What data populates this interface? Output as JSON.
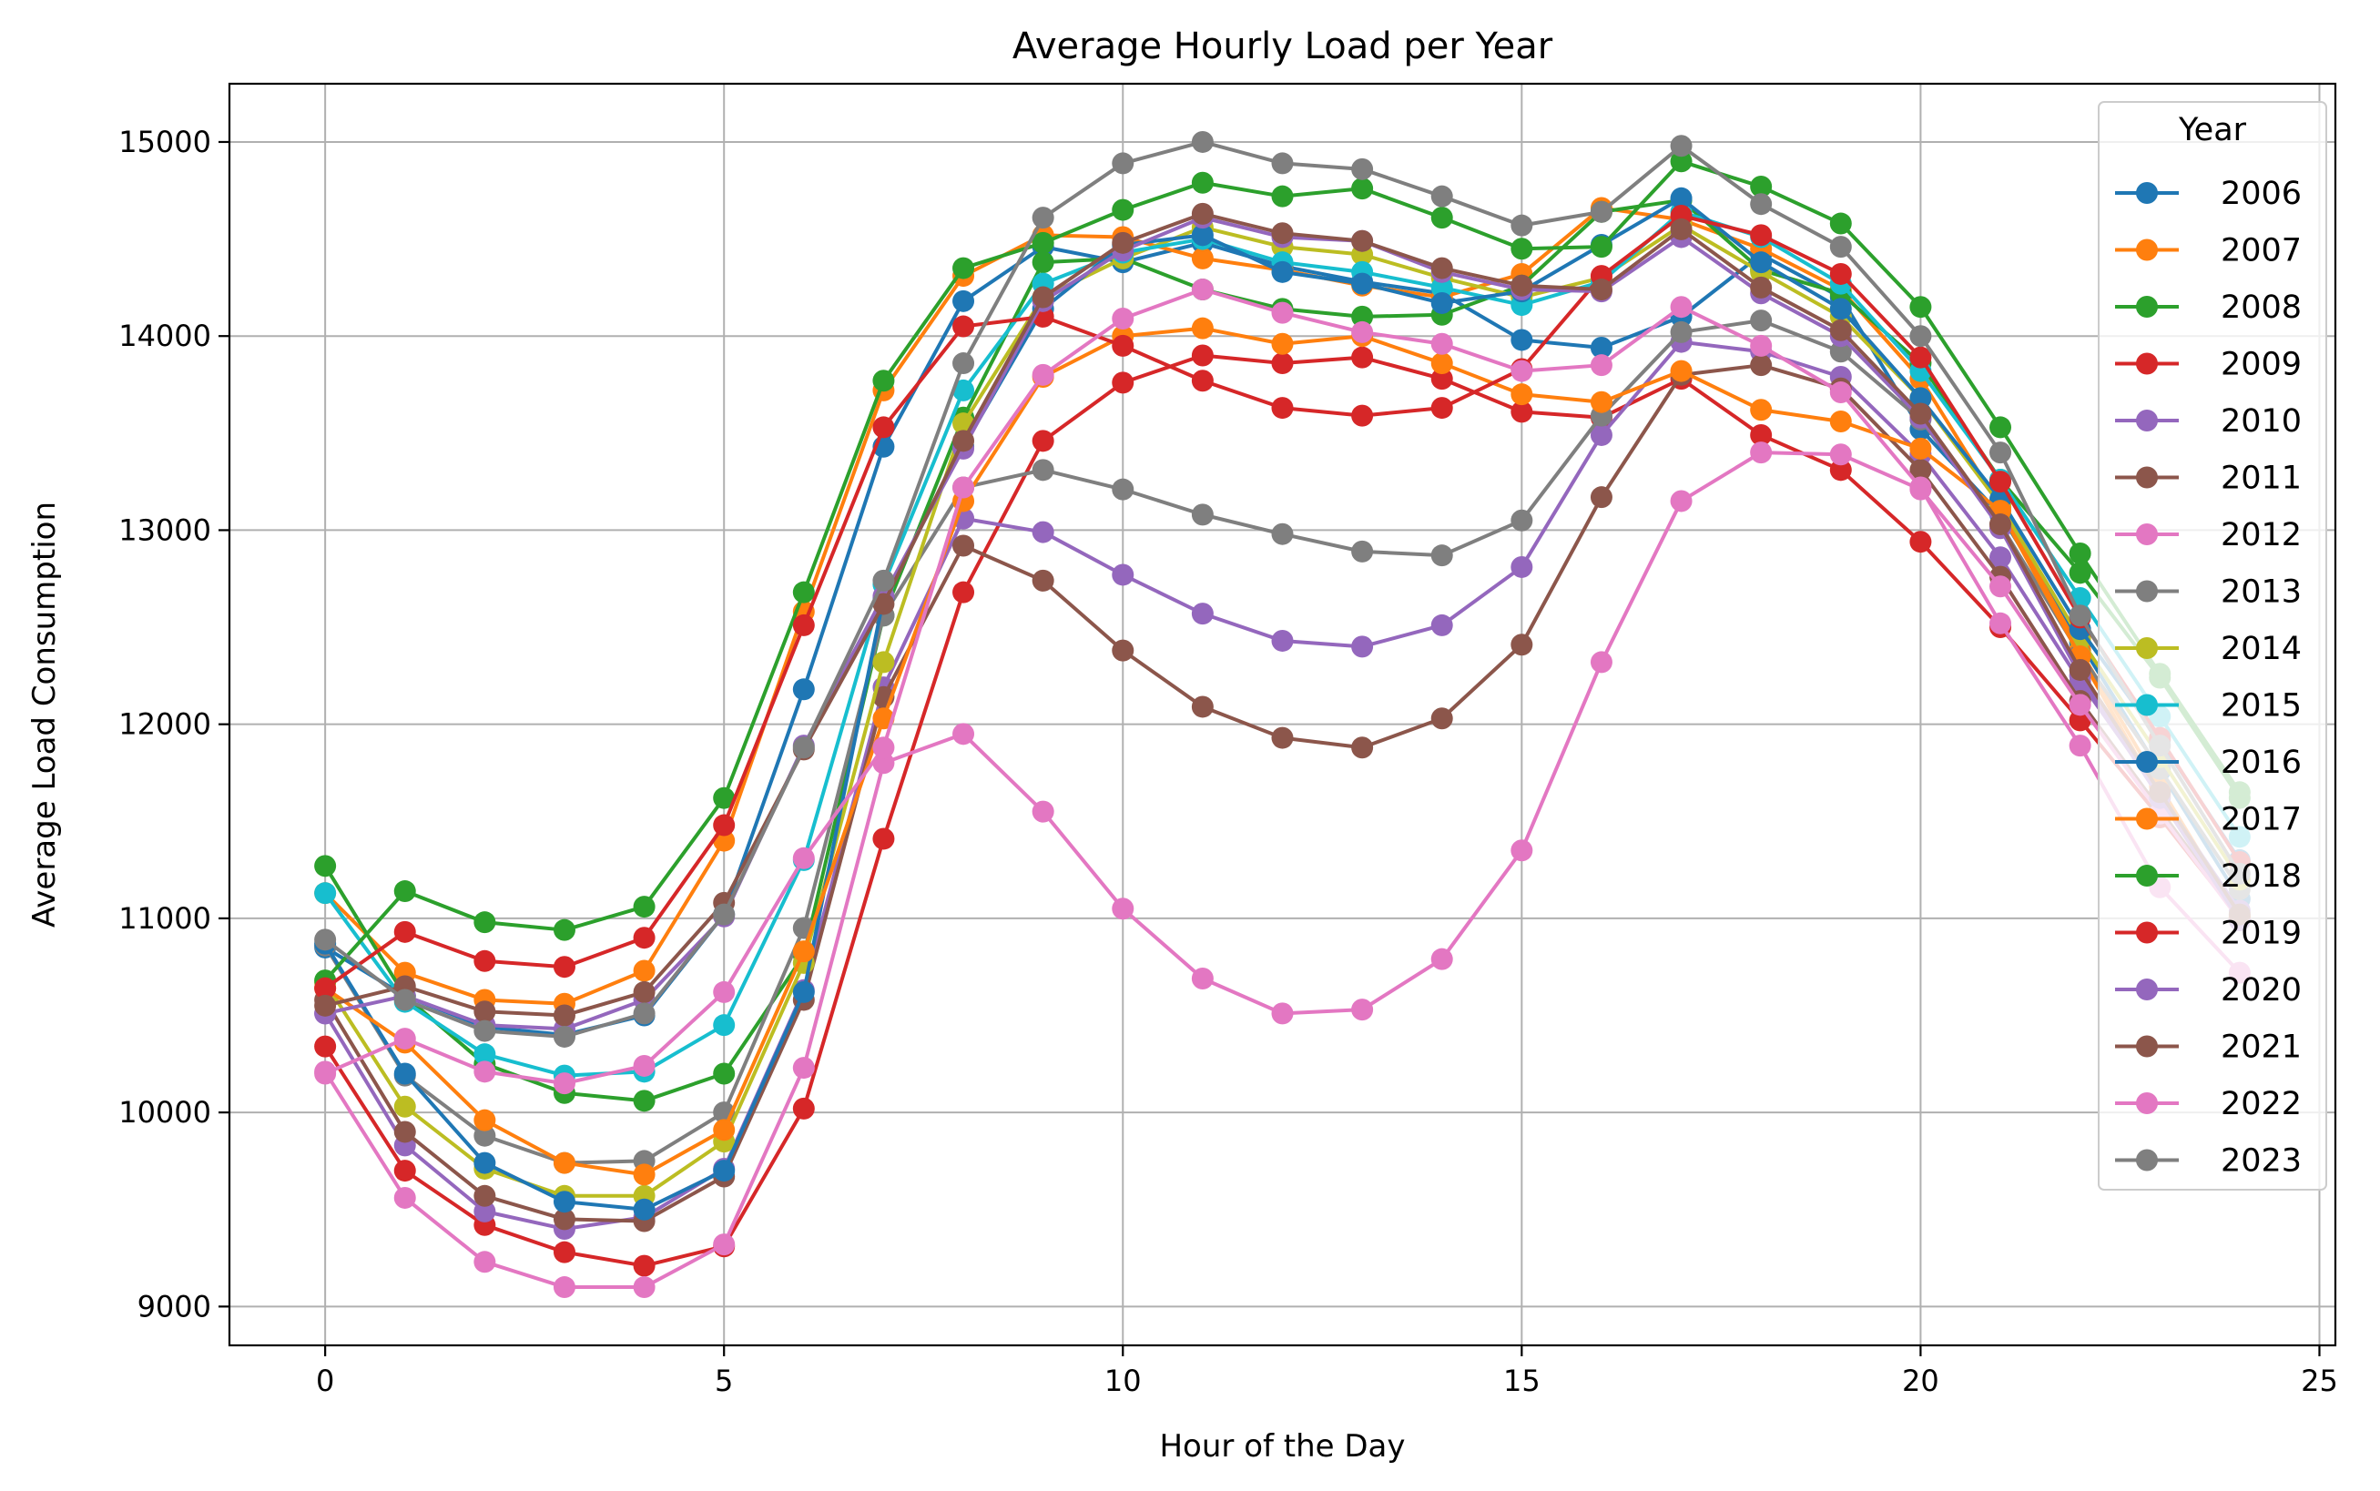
{
  "chart_data": {
    "type": "line",
    "title": "Average Hourly Load per Year",
    "xlabel": "Hour of the Day",
    "ylabel": "Average Load Consumption",
    "xlim": [
      -1.2,
      25.2
    ],
    "ylim": [
      8800,
      15300
    ],
    "xticks": [
      0,
      5,
      10,
      15,
      20,
      25
    ],
    "yticks": [
      9000,
      10000,
      11000,
      12000,
      13000,
      14000,
      15000
    ],
    "grid": true,
    "legend": {
      "title": "Year",
      "position": "top-right"
    },
    "x": [
      0,
      1,
      2,
      3,
      4,
      5,
      6,
      7,
      8,
      9,
      10,
      11,
      12,
      13,
      14,
      15,
      16,
      17,
      18,
      19,
      20,
      21,
      22,
      23,
      24
    ],
    "series": [
      {
        "name": "2006",
        "color": "#1f77b4",
        "values": [
          10850,
          10600,
          10440,
          10400,
          10500,
          11020,
          12180,
          13430,
          14180,
          14460,
          14380,
          14480,
          14360,
          14280,
          14220,
          13980,
          13940,
          14100,
          14420,
          14200,
          13520,
          13080,
          12420,
          11760,
          11100
        ]
      },
      {
        "name": "2007",
        "color": "#ff7f0e",
        "values": [
          11130,
          10720,
          10580,
          10560,
          10730,
          11400,
          12580,
          13720,
          14310,
          14520,
          14510,
          14400,
          14340,
          14260,
          14200,
          14320,
          14660,
          14600,
          14450,
          14240,
          13780,
          13120,
          12380,
          11680,
          11000
        ]
      },
      {
        "name": "2008",
        "color": "#2ca02c",
        "values": [
          11270,
          10600,
          10250,
          10100,
          10060,
          10200,
          10810,
          12560,
          13580,
          14380,
          14400,
          14240,
          14140,
          14100,
          14110,
          14260,
          14640,
          14700,
          14340,
          14220,
          13860,
          13260,
          12780,
          12240,
          11620
        ]
      },
      {
        "name": "2009",
        "color": "#d62728",
        "values": [
          10340,
          9700,
          9420,
          9280,
          9210,
          9310,
          10020,
          11410,
          12680,
          13460,
          13760,
          13900,
          13860,
          13890,
          13780,
          13610,
          13580,
          13780,
          13490,
          13310,
          12940,
          12500,
          12020,
          11520,
          11000
        ]
      },
      {
        "name": "2010",
        "color": "#9467bd",
        "values": [
          10510,
          9830,
          9490,
          9400,
          9460,
          9710,
          10630,
          12190,
          13060,
          12990,
          12770,
          12570,
          12430,
          12400,
          12510,
          12810,
          13490,
          13970,
          13920,
          13790,
          13390,
          12860,
          12220,
          11640,
          11040
        ]
      },
      {
        "name": "2011",
        "color": "#8c564b",
        "values": [
          10580,
          9900,
          9570,
          9450,
          9440,
          9670,
          10580,
          12140,
          12920,
          12740,
          12380,
          12090,
          11930,
          11880,
          12030,
          12410,
          13170,
          13800,
          13850,
          13730,
          13310,
          12760,
          12120,
          11560,
          11000
        ]
      },
      {
        "name": "2012",
        "color": "#e377c2",
        "values": [
          10210,
          9560,
          9230,
          9100,
          9100,
          9320,
          10230,
          11800,
          11950,
          11550,
          11050,
          10690,
          10510,
          10530,
          10790,
          11350,
          12320,
          13150,
          13400,
          13390,
          13210,
          12710,
          12100,
          11540,
          10990
        ]
      },
      {
        "name": "2013",
        "color": "#7f7f7f",
        "values": [
          10860,
          10190,
          9880,
          9740,
          9750,
          10000,
          10950,
          12560,
          13220,
          13310,
          13210,
          13080,
          12980,
          12890,
          12870,
          13050,
          13590,
          14020,
          14080,
          13920,
          13570,
          13030,
          12360,
          11770,
          11150
        ]
      },
      {
        "name": "2014",
        "color": "#bcbd22",
        "values": [
          10670,
          10030,
          9710,
          9570,
          9570,
          9850,
          10770,
          12320,
          13550,
          14200,
          14400,
          14560,
          14460,
          14420,
          14300,
          14200,
          14300,
          14570,
          14330,
          14100,
          13680,
          13130,
          12440,
          11830,
          11200
        ]
      },
      {
        "name": "2015",
        "color": "#17becf",
        "values": [
          11130,
          10570,
          10300,
          10190,
          10210,
          10450,
          11300,
          12720,
          13720,
          14270,
          14430,
          14500,
          14380,
          14330,
          14250,
          14160,
          14280,
          14640,
          14510,
          14270,
          13820,
          13260,
          12650,
          12040,
          11420
        ]
      },
      {
        "name": "2016",
        "color": "#1f77b4",
        "values": [
          10870,
          10200,
          9740,
          9540,
          9500,
          9700,
          10620,
          12650,
          13430,
          14140,
          14470,
          14520,
          14330,
          14270,
          14170,
          14230,
          14470,
          14710,
          14380,
          14140,
          13680,
          13160,
          12490,
          11920,
          11300
        ]
      },
      {
        "name": "2017",
        "color": "#ff7f0e",
        "values": [
          10640,
          10360,
          9960,
          9740,
          9680,
          9910,
          10830,
          12030,
          13150,
          13790,
          14000,
          14040,
          13960,
          14000,
          13860,
          13700,
          13660,
          13820,
          13620,
          13560,
          13420,
          13100,
          12350,
          11630,
          11010
        ]
      },
      {
        "name": "2018",
        "color": "#2ca02c",
        "values": [
          10680,
          11140,
          10980,
          10940,
          11060,
          11620,
          12680,
          13770,
          14350,
          14480,
          14650,
          14790,
          14720,
          14760,
          14610,
          14450,
          14460,
          14900,
          14770,
          14580,
          14150,
          13530,
          12880,
          12260,
          11650
        ]
      },
      {
        "name": "2019",
        "color": "#d62728",
        "values": [
          10640,
          10930,
          10780,
          10750,
          10900,
          11480,
          12510,
          13530,
          14050,
          14100,
          13950,
          13770,
          13630,
          13590,
          13630,
          13830,
          14310,
          14620,
          14520,
          14320,
          13890,
          13250,
          12550,
          11930,
          11290
        ]
      },
      {
        "name": "2020",
        "color": "#9467bd",
        "values": [
          10510,
          10600,
          10450,
          10430,
          10580,
          11010,
          11890,
          12660,
          13420,
          14180,
          14440,
          14610,
          14510,
          14490,
          14330,
          14240,
          14230,
          14510,
          14220,
          14000,
          13580,
          13010,
          12250,
          11620,
          10990
        ]
      },
      {
        "name": "2021",
        "color": "#8c564b",
        "values": [
          10550,
          10650,
          10520,
          10500,
          10620,
          11080,
          11870,
          12620,
          13460,
          14200,
          14480,
          14630,
          14530,
          14490,
          14350,
          14260,
          14240,
          14550,
          14250,
          14030,
          13600,
          13030,
          12280,
          11650,
          11020
        ]
      },
      {
        "name": "2022",
        "color": "#e377c2",
        "values": [
          10200,
          10380,
          10210,
          10150,
          10240,
          10620,
          11310,
          11880,
          13220,
          13800,
          14090,
          14240,
          14120,
          14020,
          13960,
          13820,
          13850,
          14150,
          13950,
          13710,
          13220,
          12520,
          11890,
          11160,
          10720
        ]
      },
      {
        "name": "2023",
        "color": "#7f7f7f",
        "values": [
          10890,
          10580,
          10420,
          10390,
          10510,
          11020,
          11880,
          12740,
          13860,
          14610,
          14890,
          15000,
          14890,
          14860,
          14720,
          14570,
          14640,
          14980,
          14680,
          14460,
          14000,
          13400,
          12560,
          11890,
          11230
        ]
      }
    ]
  }
}
